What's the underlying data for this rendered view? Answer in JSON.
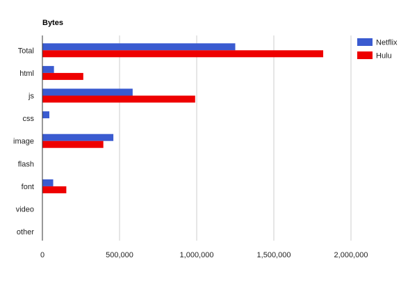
{
  "chart_data": {
    "type": "bar",
    "orientation": "horizontal",
    "title": "Bytes",
    "xlabel": "",
    "ylabel": "",
    "categories": [
      "Total",
      "html",
      "js",
      "css",
      "image",
      "flash",
      "font",
      "video",
      "other"
    ],
    "series": [
      {
        "name": "Netflix",
        "color": "#3a5bd0",
        "values": [
          1250000,
          75000,
          585000,
          45000,
          460000,
          0,
          70000,
          0,
          0
        ]
      },
      {
        "name": "Hulu",
        "color": "#ee0000",
        "values": [
          1820000,
          265000,
          990000,
          0,
          395000,
          0,
          155000,
          0,
          0
        ]
      }
    ],
    "xlim": [
      0,
      2000000
    ],
    "xticks": [
      0,
      500000,
      1000000,
      1500000,
      2000000
    ],
    "xtick_labels": [
      "0",
      "500,000",
      "1,000,000",
      "1,500,000",
      "2,000,000"
    ],
    "grid": true,
    "legend_position": "right"
  }
}
